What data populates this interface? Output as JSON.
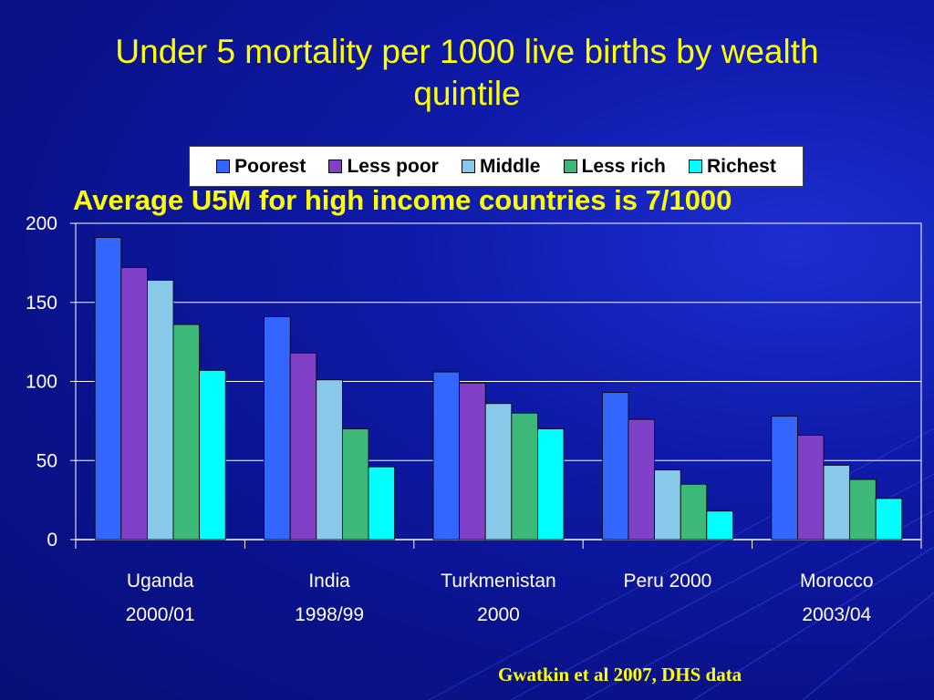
{
  "title_line1": "Under 5 mortality per 1000 live births by wealth",
  "title_line2": "quintile",
  "subtitle": "Average U5M for high income countries is 7/1000",
  "source": "Gwatkin et al 2007, DHS data",
  "chart_data": {
    "type": "bar",
    "categories": [
      [
        "Uganda",
        "2000/01"
      ],
      [
        "India",
        "1998/99"
      ],
      [
        "Turkmenistan",
        "2000"
      ],
      [
        "Peru 2000",
        ""
      ],
      [
        "Morocco",
        "2003/04"
      ]
    ],
    "series": [
      {
        "name": "Poorest",
        "color": "#3366ff",
        "values": [
          191,
          141,
          106,
          93,
          78
        ]
      },
      {
        "name": "Less poor",
        "color": "#8040c8",
        "values": [
          172,
          118,
          99,
          76,
          66
        ]
      },
      {
        "name": "Middle",
        "color": "#88c8e8",
        "values": [
          164,
          101,
          86,
          44,
          47
        ]
      },
      {
        "name": "Less rich",
        "color": "#3cb878",
        "values": [
          136,
          70,
          80,
          35,
          38
        ]
      },
      {
        "name": "Richest",
        "color": "#00ffff",
        "values": [
          107,
          46,
          70,
          18,
          26
        ]
      }
    ],
    "ylim": [
      0,
      200
    ],
    "yticks": [
      0,
      50,
      100,
      150,
      200
    ],
    "grid": true,
    "legend": "top"
  }
}
